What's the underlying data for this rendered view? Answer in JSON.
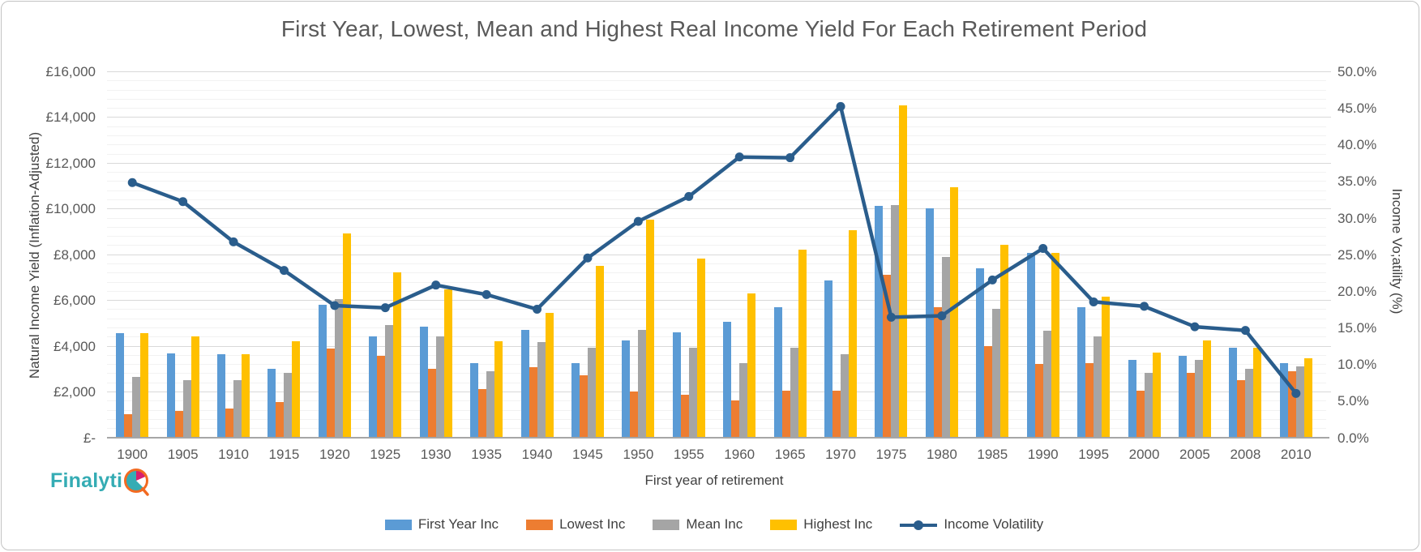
{
  "header": {
    "title": "First Year, Lowest, Mean and Highest Real Income Yield For Each Retirement Period"
  },
  "logo": {
    "text": "Finalyti",
    "mark": "Q-pie-logo"
  },
  "colors": {
    "first_year": "#5B9BD5",
    "lowest": "#ED7D31",
    "mean": "#A5A5A5",
    "highest": "#FFC000",
    "volatility_line": "#2A5D8C",
    "grid_major": "#D9D9D9",
    "grid_minor": "#F2F2F2",
    "axis_text": "#595959"
  },
  "chart_data": {
    "type": "bar",
    "subtype": "grouped-bars-with-line-overlay",
    "title": "First Year, Lowest, Mean and Highest Real Income Yield For Each Retirement Period",
    "categories": [
      1900,
      1905,
      1910,
      1915,
      1920,
      1925,
      1930,
      1935,
      1940,
      1945,
      1950,
      1955,
      1960,
      1965,
      1970,
      1975,
      1980,
      1985,
      1990,
      1995,
      2000,
      2005,
      2008,
      2010
    ],
    "series": [
      {
        "name": "First Year Inc",
        "type": "bar",
        "axis": "left",
        "color": "#5B9BD5",
        "values": [
          4550,
          3680,
          3650,
          3000,
          5800,
          4400,
          4850,
          3250,
          4700,
          3250,
          4250,
          4600,
          5050,
          5700,
          6850,
          10100,
          10000,
          7400,
          8050,
          5700,
          3400,
          3550,
          3900,
          3250
        ]
      },
      {
        "name": "Lowest Inc",
        "type": "bar",
        "axis": "left",
        "color": "#ED7D31",
        "values": [
          1000,
          1150,
          1250,
          1550,
          3870,
          3550,
          3000,
          2100,
          3050,
          2700,
          2000,
          1850,
          1600,
          2050,
          2050,
          7100,
          5700,
          4000,
          3200,
          3250,
          2050,
          2800,
          2500,
          2900
        ]
      },
      {
        "name": "Mean Inc",
        "type": "bar",
        "axis": "left",
        "color": "#A5A5A5",
        "values": [
          2650,
          2500,
          2500,
          2800,
          6050,
          4900,
          4400,
          2900,
          4150,
          3900,
          4700,
          3900,
          3250,
          3900,
          3650,
          10150,
          7900,
          5600,
          4650,
          4400,
          2800,
          3400,
          3000,
          3100
        ]
      },
      {
        "name": "Highest Inc",
        "type": "bar",
        "axis": "left",
        "color": "#FFC000",
        "values": [
          4550,
          4400,
          3650,
          4200,
          8900,
          7200,
          6450,
          4200,
          5450,
          7500,
          9500,
          7800,
          6300,
          8200,
          9050,
          14500,
          10950,
          8400,
          8050,
          6150,
          3700,
          4250,
          3900,
          3450
        ]
      },
      {
        "name": "Income Volatility",
        "type": "line",
        "axis": "right",
        "color": "#2A5D8C",
        "values": [
          34.8,
          32.2,
          26.7,
          22.8,
          18.0,
          17.7,
          20.8,
          19.5,
          17.5,
          24.5,
          29.5,
          32.9,
          38.3,
          38.2,
          45.2,
          16.4,
          16.6,
          21.5,
          25.8,
          18.5,
          17.9,
          15.1,
          14.6,
          6.0
        ]
      }
    ],
    "left_axis": {
      "title": "Natural Income Yield (Inflation-Adjusted)",
      "min": 0,
      "max": 16000,
      "major_unit": 2000,
      "minor_unit": 400,
      "tick_labels": [
        "£16,000",
        "£14,000",
        "£12,000",
        "£10,000",
        "£8,000",
        "£6,000",
        "£4,000",
        "£2,000",
        "£-"
      ]
    },
    "right_axis": {
      "title": "Income Vo;atility (%)",
      "min": 0,
      "max": 50,
      "major_unit": 5,
      "tick_labels": [
        "50.0%",
        "45.0%",
        "40.0%",
        "35.0%",
        "30.0%",
        "25.0%",
        "20.0%",
        "15.0%",
        "10.0%",
        "5.0%",
        "0.0%"
      ]
    },
    "x_axis": {
      "title": "First year of retirement"
    },
    "legend": {
      "position": "bottom",
      "entries": [
        "First Year Inc",
        "Lowest Inc",
        "Mean Inc",
        "Highest Inc",
        "Income Volatility"
      ]
    },
    "grid": true
  }
}
